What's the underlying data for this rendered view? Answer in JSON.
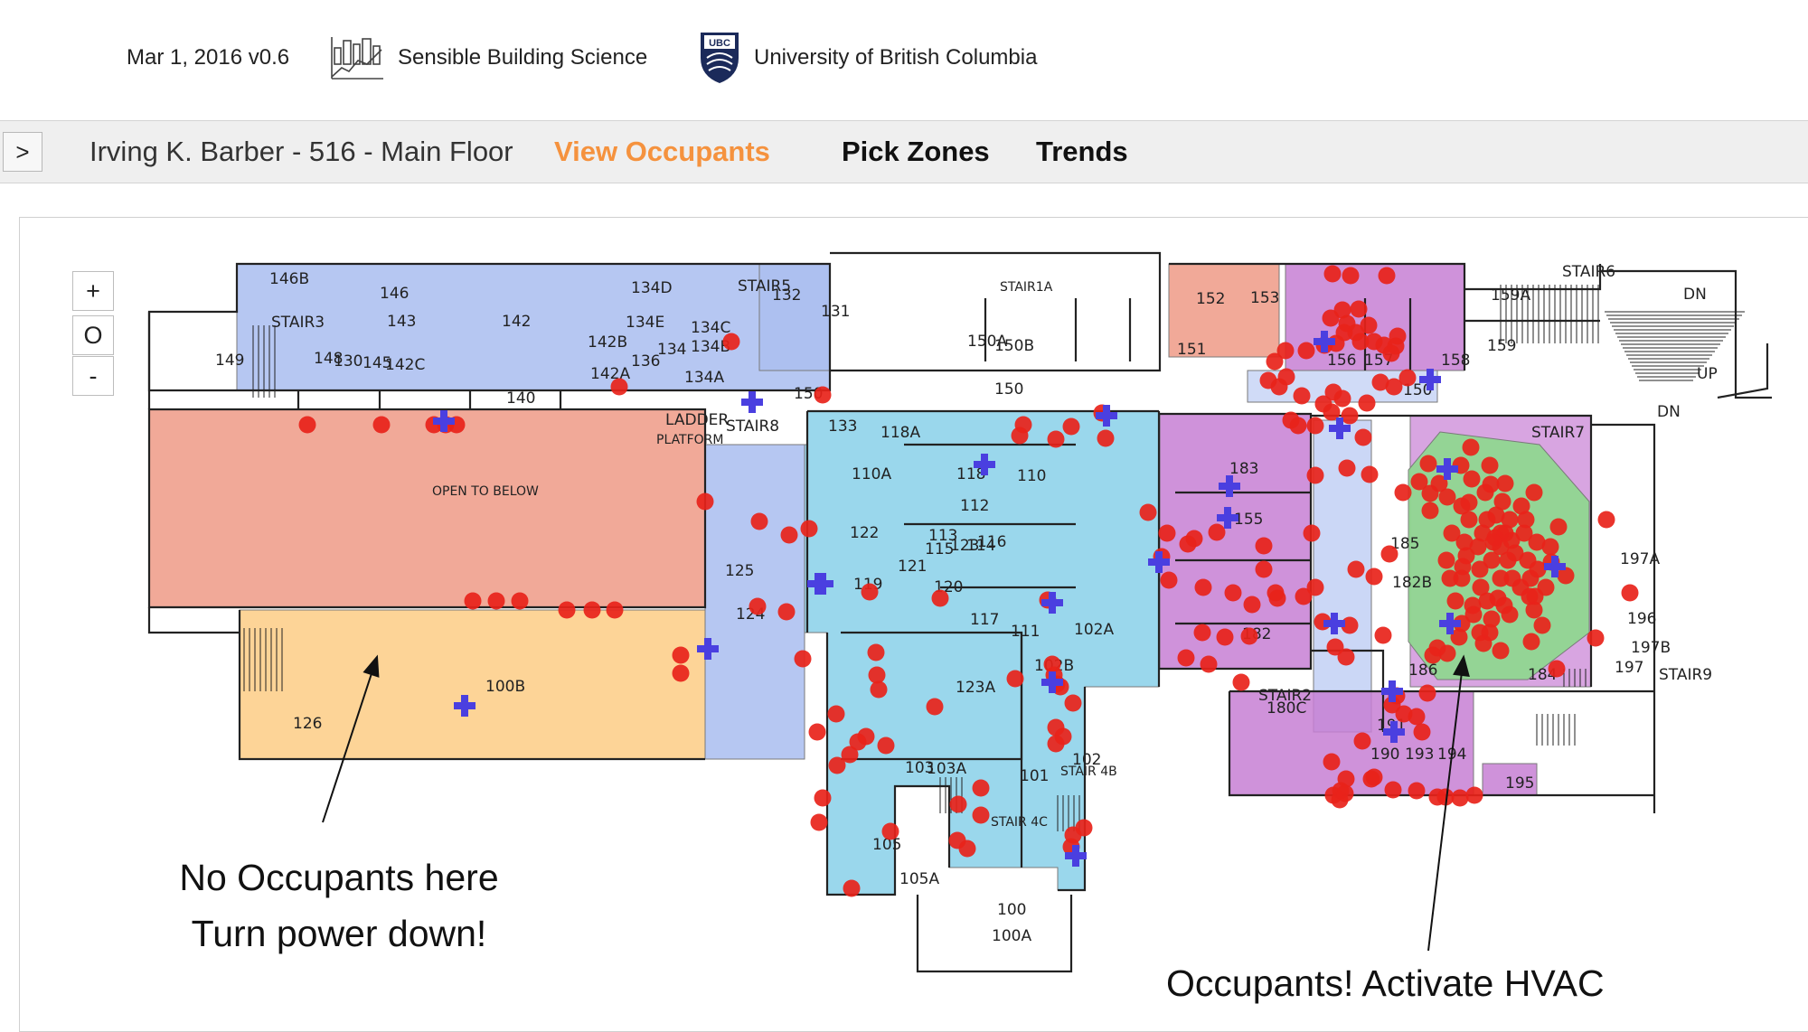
{
  "header": {
    "version": "Mar 1, 2016 v0.6",
    "brand": "Sensible Building Science",
    "university": "University of British Columbia",
    "ubc_badge": "UBC",
    "brand_icon": "building-chart-icon",
    "crest_icon": "ubc-crest-icon"
  },
  "nav": {
    "toggle": ">",
    "title": "Irving K. Barber - 516 - Main Floor",
    "tabs": [
      {
        "label": "View Occupants",
        "active": true
      },
      {
        "label": "Pick Zones",
        "active": false
      },
      {
        "label": "Trends",
        "active": false
      }
    ]
  },
  "zoom": {
    "in": "+",
    "reset": "O",
    "out": "-"
  },
  "colors": {
    "accent": "#f5923e",
    "occupant_dot": "#e8231a",
    "sensor_marker": "#4a3fe0",
    "zone_blue": "#a9bdf0",
    "zone_red": "#ee9a86",
    "zone_orange": "#fdcf8c",
    "zone_cyan": "#8fd3ea",
    "zone_magenta": "#c77fd4",
    "zone_green": "#8dd98d"
  },
  "floorplan": {
    "labels": [
      "146B",
      "146",
      "143",
      "142",
      "142B",
      "142C",
      "145",
      "148",
      "130",
      "149",
      "STAIR3",
      "134D",
      "134E",
      "134C",
      "134B",
      "134A",
      "134",
      "136",
      "142A",
      "140",
      "LADDER",
      "PLATFORM",
      "OPEN TO BELOW",
      "150",
      "150",
      "STAIR1A",
      "150A",
      "150B",
      "STAIR5",
      "132",
      "131",
      "152",
      "153",
      "151",
      "156",
      "157",
      "158",
      "150",
      "159A",
      "159",
      "STAIR6",
      "DN",
      "UP",
      "DN",
      "STAIR7",
      "183",
      "155",
      "185",
      "182B",
      "182",
      "186",
      "184",
      "196",
      "197",
      "197A",
      "197B",
      "STAIR8",
      "133",
      "118A",
      "110A",
      "118",
      "112",
      "110",
      "122",
      "119",
      "121",
      "120",
      "123",
      "114",
      "116",
      "113",
      "115",
      "117",
      "123A",
      "124",
      "125",
      "111",
      "102A",
      "102B",
      "102",
      "101",
      "103",
      "105",
      "105A",
      "103A",
      "STAIR 4B",
      "STAIR 4C",
      "100",
      "100A",
      "100B",
      "126",
      "STAIR2",
      "180C",
      "191",
      "190",
      "193",
      "194",
      "195",
      "STAIR9",
      "UP"
    ]
  },
  "annotations": {
    "left": [
      "No Occupants here",
      "Turn power down!"
    ],
    "right": "Occupants! Activate HVAC"
  }
}
